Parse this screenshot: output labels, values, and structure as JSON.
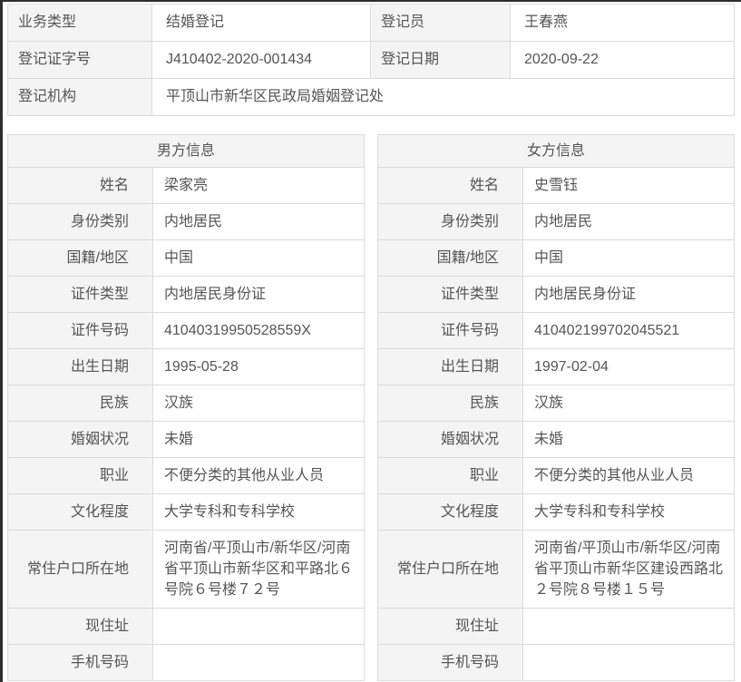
{
  "colors": {
    "label_bg": "#f4f4f4",
    "border": "#dcdcdc",
    "text": "#555555",
    "edge": "#2e2e2e"
  },
  "registration": {
    "rows": [
      {
        "label1": "业务类型",
        "value1": "结婚登记",
        "label2": "登记员",
        "value2": "王春燕"
      },
      {
        "label1": "登记证字号",
        "value1": "J410402-2020-001434",
        "label2": "登记日期",
        "value2": "2020-09-22"
      },
      {
        "label1": "登记机构",
        "value1": "平顶山市新华区民政局婚姻登记处"
      }
    ]
  },
  "male": {
    "title": "男方信息",
    "fields": [
      {
        "label": "姓名",
        "value": "梁家亮"
      },
      {
        "label": "身份类别",
        "value": "内地居民"
      },
      {
        "label": "国籍/地区",
        "value": "中国"
      },
      {
        "label": "证件类型",
        "value": "内地居民身份证"
      },
      {
        "label": "证件号码",
        "value": "41040319950528559X"
      },
      {
        "label": "出生日期",
        "value": "1995-05-28"
      },
      {
        "label": "民族",
        "value": "汉族"
      },
      {
        "label": "婚姻状况",
        "value": "未婚"
      },
      {
        "label": "职业",
        "value": "不便分类的其他从业人员"
      },
      {
        "label": "文化程度",
        "value": "大学专科和专科学校"
      },
      {
        "label": "常住户口所在地",
        "value": "河南省/平顶山市/新华区/河南省平顶山市新华区和平路北６号院６号楼７２号"
      },
      {
        "label": "现住址",
        "value": ""
      },
      {
        "label": "手机号码",
        "value": ""
      }
    ]
  },
  "female": {
    "title": "女方信息",
    "fields": [
      {
        "label": "姓名",
        "value": "史雪钰"
      },
      {
        "label": "身份类别",
        "value": "内地居民"
      },
      {
        "label": "国籍/地区",
        "value": "中国"
      },
      {
        "label": "证件类型",
        "value": "内地居民身份证"
      },
      {
        "label": "证件号码",
        "value": "410402199702045521"
      },
      {
        "label": "出生日期",
        "value": "1997-02-04"
      },
      {
        "label": "民族",
        "value": "汉族"
      },
      {
        "label": "婚姻状况",
        "value": "未婚"
      },
      {
        "label": "职业",
        "value": "不便分类的其他从业人员"
      },
      {
        "label": "文化程度",
        "value": "大学专科和专科学校"
      },
      {
        "label": "常住户口所在地",
        "value": "河南省/平顶山市/新华区/河南省平顶山市新华区建设西路北２号院８号楼１５号"
      },
      {
        "label": "现住址",
        "value": ""
      },
      {
        "label": "手机号码",
        "value": ""
      }
    ]
  }
}
